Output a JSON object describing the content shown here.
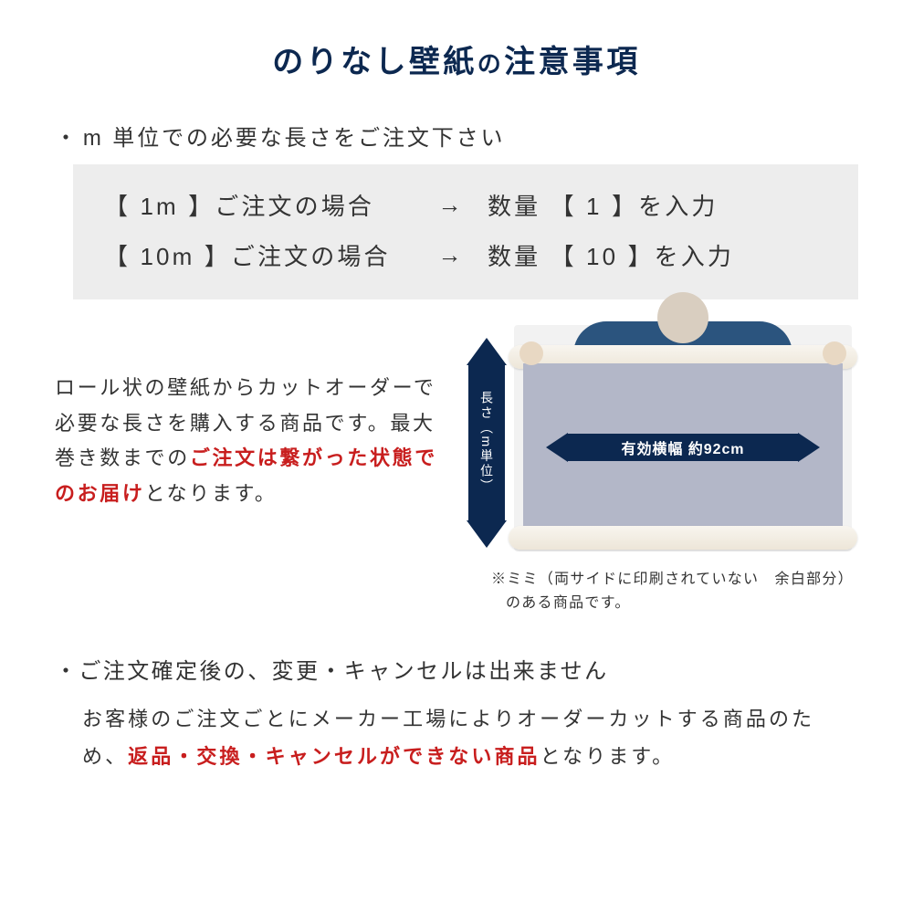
{
  "colors": {
    "navy": "#0c2850",
    "red": "#c81e1e",
    "grey_box": "#ededed",
    "paper": "#b3b7c8",
    "text": "#333333",
    "bg": "#ffffff"
  },
  "title_main": "のりなし壁紙",
  "title_joiner": "の",
  "title_tail": "注意事項",
  "bullet1": "m 単位での必要な長さをご注文下さい",
  "examples": [
    {
      "order": "【 1m 】ご注文の場合",
      "arrow": "→",
      "qty": "数量 【 1 】を入力"
    },
    {
      "order": "【 10m 】ご注文の場合",
      "arrow": "→",
      "qty": "数量 【 10 】を入力"
    }
  ],
  "desc": {
    "p1": "ロール状の壁紙からカットオーダーで必要な長さを購入する商品です。最大巻き数までの",
    "red": "ご注文は繋がった状態でのお届け",
    "p2": "となります。"
  },
  "diagram": {
    "vertical_label": "長さ（m単位）",
    "width_label": "有効横幅 約92cm",
    "mimi_note": "※ミミ（両サイドに印刷されていない　余白部分）のある商品です。"
  },
  "bullet2": "ご注文確定後の、変更・キャンセルは出来ません",
  "body2": {
    "p1": "お客様のご注文ごとにメーカー工場によりオーダーカットする商品のため、",
    "red": "返品・交換・キャンセルができない商品",
    "p2": "となります。"
  }
}
